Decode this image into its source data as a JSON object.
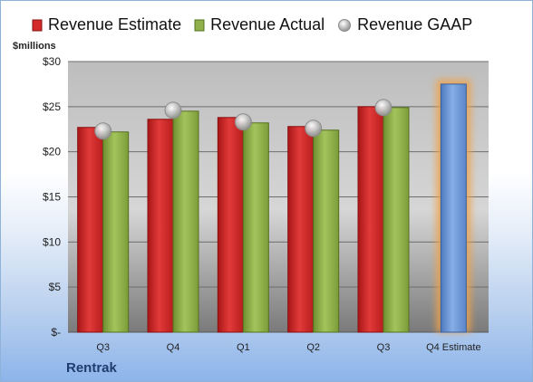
{
  "chart_data": {
    "type": "bar",
    "title": "",
    "unit_label": "$millions",
    "company": "Rentrak",
    "categories": [
      "Q3",
      "Q4",
      "Q1",
      "Q2",
      "Q3",
      "Q4 Estimate"
    ],
    "y_ticks": [
      "$-",
      "$5",
      "$10",
      "$15",
      "$20",
      "$25",
      "$30"
    ],
    "ylim": [
      0,
      30
    ],
    "grid": true,
    "legend_position": "top",
    "series": [
      {
        "name": "Revenue Estimate",
        "type": "bar",
        "color": "#d42a2a",
        "values": [
          22.7,
          23.6,
          23.8,
          22.8,
          25.0,
          null
        ]
      },
      {
        "name": "Revenue Actual",
        "type": "bar",
        "color": "#8fb04a",
        "values": [
          22.2,
          24.5,
          23.2,
          22.4,
          24.9,
          null
        ]
      },
      {
        "name": "Revenue GAAP",
        "type": "marker",
        "color": "#c8c8c8",
        "values": [
          22.3,
          24.6,
          23.3,
          22.6,
          24.9,
          null
        ]
      },
      {
        "name": "Q4 Estimate",
        "type": "bar",
        "color": "#6f9ad6",
        "highlight": "#f0a24a",
        "values": [
          null,
          null,
          null,
          null,
          null,
          27.5
        ]
      }
    ]
  }
}
